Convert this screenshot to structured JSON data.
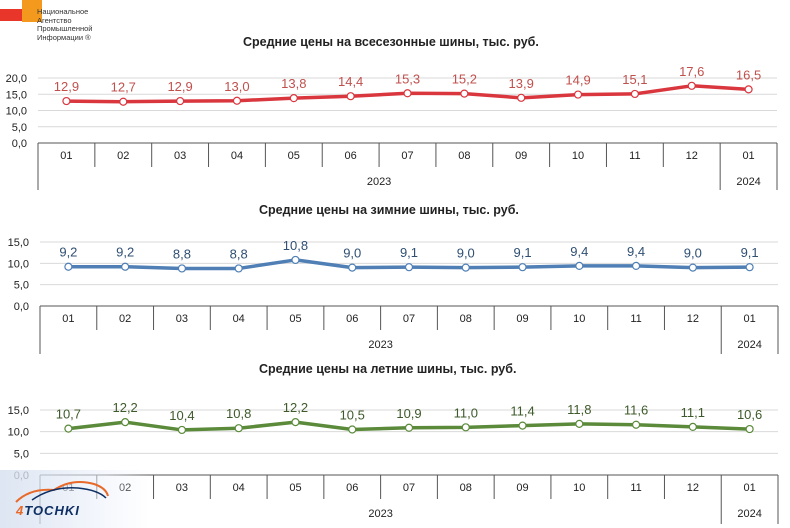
{
  "logo": {
    "tag": "НАПИ",
    "lines": [
      "Национальное",
      "Агентство",
      "Промышленной",
      "Информации ®"
    ]
  },
  "watermark": {
    "prefix": "4",
    "text": "TOCHKI"
  },
  "chart_data": [
    {
      "type": "line",
      "title": "Средние цены на всесезонные шины, тыс. руб.",
      "categories": [
        "01",
        "02",
        "03",
        "04",
        "05",
        "06",
        "07",
        "08",
        "09",
        "10",
        "11",
        "12",
        "01"
      ],
      "year_groups": [
        {
          "label": "2023",
          "span": 12
        },
        {
          "label": "2024",
          "span": 1
        }
      ],
      "values": [
        12.9,
        12.7,
        12.9,
        13.0,
        13.8,
        14.4,
        15.3,
        15.2,
        13.9,
        14.9,
        15.1,
        17.6,
        16.5
      ],
      "value_labels": [
        "12,9",
        "12,7",
        "12,9",
        "13,0",
        "13,8",
        "14,4",
        "15,3",
        "15,2",
        "13,9",
        "14,9",
        "15,1",
        "17,6",
        "16,5"
      ],
      "yticks": [
        "0,0",
        "5,0",
        "10,0",
        "15,0",
        "20,0"
      ],
      "ylim": [
        0,
        20
      ],
      "color": "#d9363e",
      "label_color": "#c0504d",
      "grid": true,
      "xlabel": "",
      "ylabel": ""
    },
    {
      "type": "line",
      "title": "Средние цены на зимние шины, тыс. руб.",
      "categories": [
        "01",
        "02",
        "03",
        "04",
        "05",
        "06",
        "07",
        "08",
        "09",
        "10",
        "11",
        "12",
        "01"
      ],
      "year_groups": [
        {
          "label": "2023",
          "span": 12
        },
        {
          "label": "2024",
          "span": 1
        }
      ],
      "values": [
        9.2,
        9.2,
        8.8,
        8.8,
        10.8,
        9.0,
        9.1,
        9.0,
        9.1,
        9.4,
        9.4,
        9.0,
        9.1
      ],
      "value_labels": [
        "9,2",
        "9,2",
        "8,8",
        "8,8",
        "10,8",
        "9,0",
        "9,1",
        "9,0",
        "9,1",
        "9,4",
        "9,4",
        "9,0",
        "9,1"
      ],
      "yticks": [
        "0,0",
        "5,0",
        "10,0",
        "15,0"
      ],
      "ylim": [
        0,
        15
      ],
      "color": "#4f7fb5",
      "label_color": "#2f4f73",
      "grid": true,
      "xlabel": "",
      "ylabel": ""
    },
    {
      "type": "line",
      "title": "Средние цены на летние шины, тыс. руб.",
      "categories": [
        "01",
        "02",
        "03",
        "04",
        "05",
        "06",
        "07",
        "08",
        "09",
        "10",
        "11",
        "12",
        "01"
      ],
      "year_groups": [
        {
          "label": "2023",
          "span": 12
        },
        {
          "label": "2024",
          "span": 1
        }
      ],
      "values": [
        10.7,
        12.2,
        10.4,
        10.8,
        12.2,
        10.5,
        10.9,
        11.0,
        11.4,
        11.8,
        11.6,
        11.1,
        10.6
      ],
      "value_labels": [
        "10,7",
        "12,2",
        "10,4",
        "10,8",
        "12,2",
        "10,5",
        "10,9",
        "11,0",
        "11,4",
        "11,8",
        "11,6",
        "11,1",
        "10,6"
      ],
      "yticks": [
        "0,0",
        "5,0",
        "10,0",
        "15,0"
      ],
      "ylim": [
        0,
        15
      ],
      "color": "#5a8a3a",
      "label_color": "#3e5a2a",
      "grid": true,
      "xlabel": "",
      "ylabel": ""
    }
  ]
}
